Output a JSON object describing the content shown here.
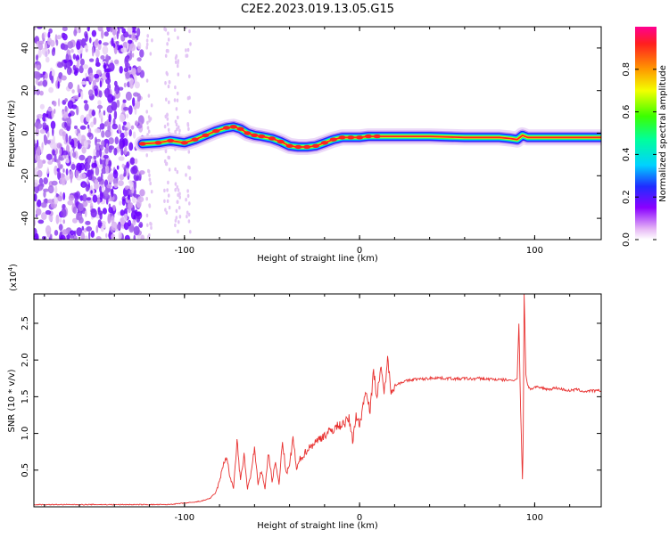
{
  "title": "C2E2.2023.019.13.05.G15",
  "chart_data": [
    {
      "type": "heatmap",
      "xlabel": "Height of straight line (km)",
      "ylabel": "Frequency (Hz)",
      "xlim": [
        -186,
        138
      ],
      "ylim": [
        -50,
        50
      ],
      "x_ticks": [
        -100,
        0,
        100
      ],
      "x_tick_labels": [
        "-100",
        "0",
        "100"
      ],
      "y_ticks": [
        -40,
        -20,
        0,
        20,
        40
      ],
      "y_tick_labels": [
        "-40",
        "-20",
        "0",
        "20",
        "40"
      ],
      "noise_region_x": [
        -186,
        -97
      ],
      "signal_trace": {
        "x": [
          -124,
          -115,
          -108,
          -100,
          -94,
          -88,
          -82,
          -76,
          -72,
          -68,
          -64,
          -60,
          -56,
          -50,
          -45,
          -40,
          -35,
          -30,
          -25,
          -20,
          -15,
          -10,
          -5,
          0,
          5,
          10,
          20,
          40,
          60,
          70,
          80,
          86,
          90,
          93,
          96,
          100,
          110,
          120,
          138
        ],
        "y": [
          -5,
          -4.5,
          -3.5,
          -4.5,
          -3,
          -1,
          1,
          2.5,
          3,
          2,
          0,
          -1,
          -1.5,
          -2.5,
          -4,
          -6,
          -6.5,
          -6.5,
          -6,
          -4.5,
          -3,
          -2,
          -2,
          -2,
          -1.5,
          -1.5,
          -1.5,
          -1.5,
          -2,
          -2,
          -2,
          -2.5,
          -3,
          -1,
          -2,
          -2,
          -2,
          -2,
          -2
        ]
      },
      "colorbar": {
        "label": "Normalized spectral amplitude",
        "range": [
          0.0,
          1.0
        ],
        "ticks": [
          0.0,
          0.2,
          0.4,
          0.6,
          0.8
        ],
        "tick_labels": [
          "0.0",
          "0.2",
          "0.4",
          "0.6",
          "0.8"
        ]
      },
      "grid": false,
      "legend": "none"
    },
    {
      "type": "line",
      "xlabel": "Height of straight line (km)",
      "ylabel": "SNR (10 * v/v)",
      "y_multiplier_base": "(x10",
      "y_multiplier_exp": "4",
      "y_multiplier_close": ")",
      "xlim": [
        -186,
        138
      ],
      "ylim": [
        0,
        2.9
      ],
      "x_ticks": [
        -100,
        0,
        100
      ],
      "x_tick_labels": [
        "-100",
        "0",
        "100"
      ],
      "y_ticks": [
        0.5,
        1.0,
        1.5,
        2.0,
        2.5
      ],
      "y_tick_labels": [
        "0.5",
        "1.0",
        "1.5",
        "2.0",
        "2.5"
      ],
      "series": [
        {
          "color": "#e8302f",
          "x": [
            -186,
            -160,
            -140,
            -120,
            -110,
            -100,
            -95,
            -90,
            -85,
            -82,
            -80,
            -78,
            -76,
            -74,
            -72,
            -70,
            -68,
            -66,
            -64,
            -62,
            -60,
            -58,
            -56,
            -54,
            -52,
            -50,
            -48,
            -46,
            -44,
            -42,
            -40,
            -38,
            -36,
            -34,
            -32,
            -30,
            -28,
            -26,
            -24,
            -22,
            -20,
            -18,
            -16,
            -14,
            -12,
            -10,
            -8,
            -6,
            -4,
            -2,
            0,
            2,
            4,
            6,
            8,
            10,
            12,
            14,
            16,
            18,
            20,
            24,
            28,
            32,
            36,
            40,
            44,
            48,
            52,
            56,
            60,
            64,
            68,
            72,
            76,
            80,
            84,
            88,
            90,
            91,
            92,
            93,
            93.5,
            94,
            95,
            96,
            98,
            100,
            104,
            108,
            112,
            116,
            120,
            124,
            128,
            132,
            136,
            138
          ],
          "y": [
            0.03,
            0.03,
            0.03,
            0.03,
            0.03,
            0.05,
            0.06,
            0.08,
            0.12,
            0.2,
            0.35,
            0.55,
            0.7,
            0.4,
            0.25,
            0.9,
            0.35,
            0.7,
            0.25,
            0.45,
            0.8,
            0.3,
            0.5,
            0.25,
            0.75,
            0.35,
            0.6,
            0.3,
            0.9,
            0.45,
            0.55,
            0.95,
            0.5,
            0.65,
            0.7,
            0.78,
            0.82,
            0.87,
            0.9,
            0.95,
            0.98,
            1.0,
            1.04,
            1.08,
            1.1,
            1.13,
            1.15,
            1.2,
            0.9,
            1.25,
            1.1,
            1.4,
            1.6,
            1.3,
            1.85,
            1.5,
            1.9,
            1.55,
            2.0,
            1.6,
            1.65,
            1.7,
            1.72,
            1.74,
            1.74,
            1.75,
            1.76,
            1.75,
            1.75,
            1.74,
            1.75,
            1.74,
            1.75,
            1.74,
            1.74,
            1.73,
            1.73,
            1.72,
            1.75,
            2.5,
            1.3,
            0.38,
            1.0,
            2.9,
            1.8,
            1.65,
            1.6,
            1.63,
            1.62,
            1.6,
            1.62,
            1.6,
            1.58,
            1.6,
            1.57,
            1.58,
            1.58,
            1.58
          ]
        }
      ],
      "grid": false,
      "legend": "none"
    }
  ]
}
